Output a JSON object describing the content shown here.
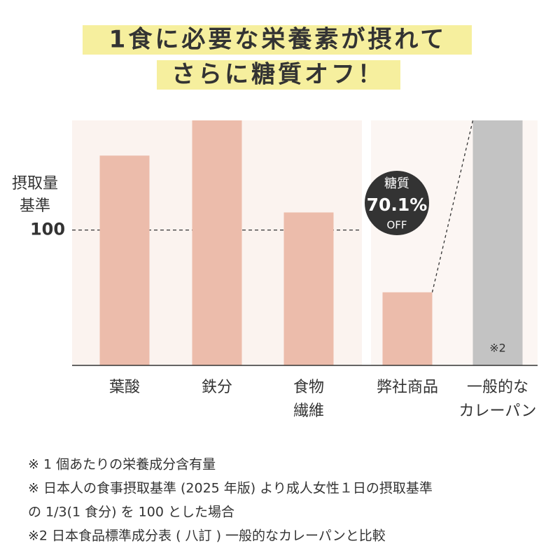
{
  "chart_data": {
    "type": "bar",
    "title_lines": [
      "1食に必要な栄養素が摂れて",
      "さらに糖質オフ！"
    ],
    "y_label_lines": [
      "摂取量",
      "基準"
    ],
    "categories": [
      [
        "葉酸"
      ],
      [
        "鉄分"
      ],
      [
        "食物",
        "繊維"
      ],
      [
        "弊社商品"
      ],
      [
        "一般的な",
        "カレーパン"
      ]
    ],
    "values": [
      155,
      181,
      113,
      54,
      181
    ],
    "colors": [
      "#ecbcab",
      "#ecbcab",
      "#ecbcab",
      "#ecbcab",
      "#c3c3c3"
    ],
    "ylim": [
      0,
      181
    ],
    "reference": {
      "value": 100,
      "label": "100"
    },
    "badge": {
      "title": "糖質",
      "value": "70.1%",
      "note": "OFF"
    },
    "bar_note": "※2",
    "footnotes": [
      "※ 1 個あたりの栄養成分含有量",
      "※ 日本人の食事摂取基準 (2025 年版) より成人女性１日の摂取基準",
      "の 1/3(1 食分) を 100 とした場合",
      "※2 日本食品標準成分表 ( 八訂 ) 一般的なカレーパンと比較"
    ]
  }
}
